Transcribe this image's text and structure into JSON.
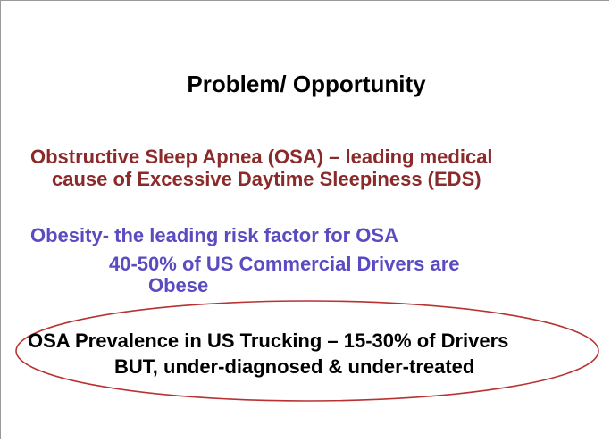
{
  "title": "Problem/ Opportunity",
  "sections": [
    {
      "lines": [
        "Obstructive Sleep Apnea (OSA) – leading medical",
        "cause of Excessive Daytime Sleepiness (EDS)"
      ]
    },
    {
      "lines": [
        "Obesity- the leading risk factor for OSA",
        "40-50% of US Commercial Drivers are",
        "Obese"
      ]
    },
    {
      "lines": [
        "OSA Prevalence in US Trucking – 15-30% of Drivers",
        "BUT, under-diagnosed & under-treated"
      ]
    }
  ]
}
